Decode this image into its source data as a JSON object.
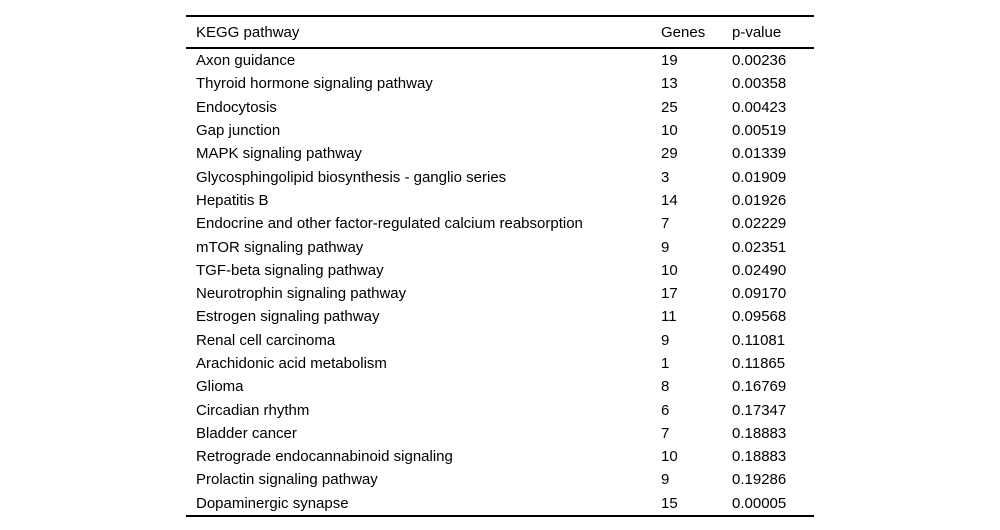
{
  "colors": {
    "background": "#ffffff",
    "text": "#000000",
    "rule": "#000000"
  },
  "table": {
    "headers": {
      "pathway": "KEGG pathway",
      "genes": "Genes",
      "p_value": "p-value"
    },
    "rows": [
      {
        "pathway": "Axon guidance",
        "genes": "19",
        "p_value": "0.00236"
      },
      {
        "pathway": "Thyroid hormone signaling pathway",
        "genes": "13",
        "p_value": "0.00358"
      },
      {
        "pathway": "Endocytosis",
        "genes": "25",
        "p_value": "0.00423"
      },
      {
        "pathway": "Gap junction",
        "genes": "10",
        "p_value": "0.00519"
      },
      {
        "pathway": "MAPK signaling pathway",
        "genes": "29",
        "p_value": "0.01339"
      },
      {
        "pathway": "Glycosphingolipid biosynthesis - ganglio series",
        "genes": "3",
        "p_value": "0.01909"
      },
      {
        "pathway": "Hepatitis B",
        "genes": "14",
        "p_value": "0.01926"
      },
      {
        "pathway": "Endocrine and other factor-regulated calcium reabsorption",
        "genes": "7",
        "p_value": "0.02229"
      },
      {
        "pathway": "mTOR signaling pathway",
        "genes": "9",
        "p_value": "0.02351"
      },
      {
        "pathway": "TGF-beta signaling pathway",
        "genes": "10",
        "p_value": "0.02490"
      },
      {
        "pathway": "Neurotrophin signaling pathway",
        "genes": "17",
        "p_value": "0.09170"
      },
      {
        "pathway": "Estrogen signaling pathway",
        "genes": "11",
        "p_value": "0.09568"
      },
      {
        "pathway": "Renal cell carcinoma",
        "genes": "9",
        "p_value": "0.11081"
      },
      {
        "pathway": "Arachidonic acid metabolism",
        "genes": "1",
        "p_value": "0.11865"
      },
      {
        "pathway": "Glioma",
        "genes": "8",
        "p_value": "0.16769"
      },
      {
        "pathway": "Circadian rhythm",
        "genes": "6",
        "p_value": "0.17347"
      },
      {
        "pathway": "Bladder cancer",
        "genes": "7",
        "p_value": "0.18883"
      },
      {
        "pathway": "Retrograde endocannabinoid signaling",
        "genes": "10",
        "p_value": "0.18883"
      },
      {
        "pathway": "Prolactin signaling pathway",
        "genes": "9",
        "p_value": "0.19286"
      },
      {
        "pathway": "Dopaminergic synapse",
        "genes": "15",
        "p_value": "0.00005"
      }
    ]
  }
}
